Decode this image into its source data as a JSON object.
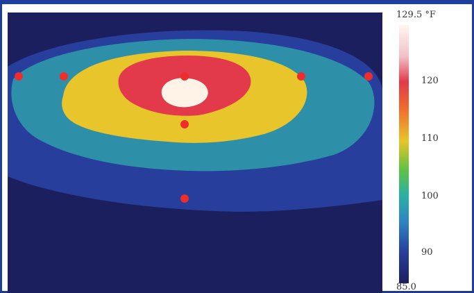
{
  "scale": {
    "max_label": "129.5 °F",
    "min_label": "85.0",
    "ticks": [
      "120",
      "110",
      "100",
      "90"
    ],
    "tick_values": [
      120,
      110,
      100,
      90
    ],
    "min": 85.0,
    "max": 129.5
  },
  "colors": {
    "background": "#1c1f5e",
    "outer": "#283e9c",
    "mid": "#2e8fa8",
    "yellow": "#e8c52a",
    "red": "#e23a4a",
    "hot": "#fff3e8",
    "marker": "#ee2d2d"
  },
  "markers": [
    "left-edge-marker",
    "left-inner-marker",
    "center-marker",
    "mid-marker",
    "right-inner-marker",
    "right-edge-marker",
    "bottom-marker"
  ]
}
